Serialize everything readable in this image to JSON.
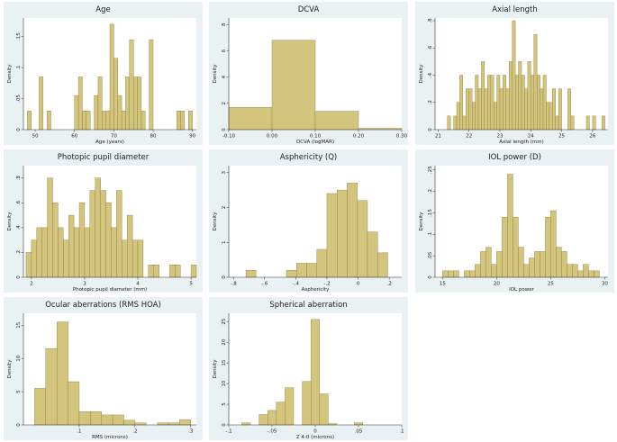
{
  "chart_data": [
    {
      "type": "histogram",
      "title": "Age",
      "xlabel": "Age (years)",
      "ylabel": "Density",
      "xlim": [
        47,
        91
      ],
      "ylim": [
        0,
        0.18
      ],
      "xticks": [
        50,
        60,
        70,
        80,
        90
      ],
      "xtick_labels": [
        "50",
        "60",
        "70",
        "80",
        "90"
      ],
      "yticks": [
        0,
        0.05,
        0.1,
        0.15
      ],
      "ytick_labels": [
        "0",
        ".05",
        ".1",
        ".15"
      ],
      "bin_width": 1,
      "bins": [
        [
          48,
          0.03
        ],
        [
          51,
          0.085
        ],
        [
          53,
          0.03
        ],
        [
          60,
          0.055
        ],
        [
          61,
          0.085
        ],
        [
          62,
          0.03
        ],
        [
          63,
          0.03
        ],
        [
          65,
          0.055
        ],
        [
          66,
          0.085
        ],
        [
          67,
          0.03
        ],
        [
          68,
          0.03
        ],
        [
          69,
          0.17
        ],
        [
          70,
          0.115
        ],
        [
          71,
          0.055
        ],
        [
          72,
          0.03
        ],
        [
          73,
          0.085
        ],
        [
          74,
          0.145
        ],
        [
          75,
          0.085
        ],
        [
          76,
          0.085
        ],
        [
          77,
          0.03
        ],
        [
          79,
          0.145
        ],
        [
          86,
          0.03
        ],
        [
          87,
          0.03
        ],
        [
          89,
          0.03
        ]
      ]
    },
    {
      "type": "histogram",
      "title": "DCVA",
      "xlabel": "DCVA (logMAR)",
      "ylabel": "Density",
      "xlim": [
        -0.1,
        0.3
      ],
      "ylim": [
        0,
        8.5
      ],
      "xticks": [
        -0.1,
        0,
        0.1,
        0.2,
        0.3
      ],
      "xtick_labels": [
        "-0.10",
        "0.00",
        "0.10",
        "0.20",
        "0.30"
      ],
      "yticks": [
        0,
        2,
        4,
        6,
        8
      ],
      "ytick_labels": [
        "0",
        "2",
        "4",
        "6",
        "8"
      ],
      "bin_width": 0.1,
      "bins": [
        [
          -0.1,
          1.7
        ],
        [
          0.0,
          6.8
        ],
        [
          0.1,
          1.4
        ],
        [
          0.2,
          0.1
        ]
      ]
    },
    {
      "type": "histogram",
      "title": "Axial length",
      "xlabel": "Axial length (mm)",
      "ylabel": "Density",
      "xlim": [
        20.9,
        26.5
      ],
      "ylim": [
        0,
        0.82
      ],
      "xticks": [
        21,
        22,
        23,
        24,
        25,
        26
      ],
      "xtick_labels": [
        "21",
        "22",
        "23",
        "24",
        "25",
        "26"
      ],
      "yticks": [
        0,
        0.2,
        0.4,
        0.6,
        0.8
      ],
      "ytick_labels": [
        "0",
        ".2",
        ".4",
        ".6",
        ".8"
      ],
      "bin_width": 0.1,
      "bins": [
        [
          21.3,
          0.1
        ],
        [
          21.5,
          0.1
        ],
        [
          21.6,
          0.2
        ],
        [
          21.7,
          0.4
        ],
        [
          21.8,
          0.1
        ],
        [
          21.9,
          0.3
        ],
        [
          22.0,
          0.3
        ],
        [
          22.1,
          0.2
        ],
        [
          22.2,
          0.4
        ],
        [
          22.3,
          0.3
        ],
        [
          22.4,
          0.5
        ],
        [
          22.5,
          0.3
        ],
        [
          22.6,
          0.4
        ],
        [
          22.7,
          0.4
        ],
        [
          22.8,
          0.2
        ],
        [
          22.9,
          0.4
        ],
        [
          23.0,
          0.3
        ],
        [
          23.1,
          0.4
        ],
        [
          23.2,
          0.3
        ],
        [
          23.3,
          0.5
        ],
        [
          23.4,
          0.8
        ],
        [
          23.5,
          0.4
        ],
        [
          23.6,
          0.5
        ],
        [
          23.7,
          0.4
        ],
        [
          23.8,
          0.3
        ],
        [
          23.9,
          0.5
        ],
        [
          24.0,
          0.4
        ],
        [
          24.1,
          0.7
        ],
        [
          24.2,
          0.4
        ],
        [
          24.3,
          0.3
        ],
        [
          24.4,
          0.4
        ],
        [
          24.5,
          0.2
        ],
        [
          24.6,
          0.2
        ],
        [
          24.7,
          0.3
        ],
        [
          24.8,
          0.1
        ],
        [
          24.9,
          0.3
        ],
        [
          25.2,
          0.3
        ],
        [
          25.3,
          0.1
        ],
        [
          25.8,
          0.1
        ],
        [
          26.0,
          0.1
        ],
        [
          26.3,
          0.1
        ]
      ]
    },
    {
      "type": "histogram",
      "title": "Photopic pupil diameter",
      "xlabel": "Photopic pupil diameter (mm)",
      "ylabel": "Density",
      "xlim": [
        1.85,
        5.1
      ],
      "ylim": [
        0,
        0.9
      ],
      "xticks": [
        2,
        3,
        4,
        5
      ],
      "xtick_labels": [
        "2",
        "3",
        "4",
        "5"
      ],
      "yticks": [
        0,
        0.2,
        0.4,
        0.6,
        0.8
      ],
      "ytick_labels": [
        "0",
        ".2",
        ".4",
        ".6",
        ".8"
      ],
      "bin_width": 0.1,
      "bins": [
        [
          1.9,
          0.2
        ],
        [
          2.0,
          0.3
        ],
        [
          2.1,
          0.4
        ],
        [
          2.2,
          0.4
        ],
        [
          2.3,
          0.8
        ],
        [
          2.4,
          0.6
        ],
        [
          2.5,
          0.4
        ],
        [
          2.6,
          0.3
        ],
        [
          2.7,
          0.5
        ],
        [
          2.8,
          0.4
        ],
        [
          2.9,
          0.6
        ],
        [
          3.0,
          0.4
        ],
        [
          3.1,
          0.7
        ],
        [
          3.2,
          0.8
        ],
        [
          3.3,
          0.7
        ],
        [
          3.4,
          0.6
        ],
        [
          3.5,
          0.4
        ],
        [
          3.6,
          0.7
        ],
        [
          3.7,
          0.3
        ],
        [
          3.8,
          0.5
        ],
        [
          3.9,
          0.3
        ],
        [
          4.0,
          0.3
        ],
        [
          4.2,
          0.1
        ],
        [
          4.3,
          0.1
        ],
        [
          4.6,
          0.1
        ],
        [
          4.7,
          0.1
        ],
        [
          5.0,
          0.1
        ]
      ]
    },
    {
      "type": "histogram",
      "title": "Asphericity (Q)",
      "xlabel": "Asphericity",
      "ylabel": "Density",
      "xlim": [
        -0.83,
        0.28
      ],
      "ylim": [
        0,
        3.2
      ],
      "xticks": [
        -0.8,
        -0.6,
        -0.4,
        -0.2,
        0,
        0.2
      ],
      "xtick_labels": [
        "-.8",
        "-.6",
        "-.4",
        "-.2",
        "0",
        ".2"
      ],
      "yticks": [
        0,
        1,
        2,
        3
      ],
      "ytick_labels": [
        "0",
        "1",
        "2",
        "3"
      ],
      "bin_width": 0.065,
      "bins": [
        [
          -0.72,
          0.2
        ],
        [
          -0.46,
          0.2
        ],
        [
          -0.395,
          0.4
        ],
        [
          -0.33,
          0.4
        ],
        [
          -0.265,
          0.8
        ],
        [
          -0.2,
          2.4
        ],
        [
          -0.135,
          2.5
        ],
        [
          -0.07,
          2.7
        ],
        [
          -0.005,
          2.2
        ],
        [
          0.06,
          1.3
        ],
        [
          0.125,
          0.7
        ]
      ]
    },
    {
      "type": "histogram",
      "title": "IOL power (D)",
      "xlabel": "IOL power",
      "ylabel": "Density",
      "xlim": [
        14.3,
        30.3
      ],
      "ylim": [
        0,
        0.26
      ],
      "xticks": [
        15,
        20,
        25,
        30
      ],
      "xtick_labels": [
        "15",
        "20",
        "25",
        "30"
      ],
      "yticks": [
        0,
        0.05,
        0.1,
        0.15,
        0.2,
        0.25
      ],
      "ytick_labels": [
        "0",
        ".05",
        ".1",
        ".15",
        ".2",
        ".25"
      ],
      "bin_width": 0.5,
      "bins": [
        [
          15.0,
          0.015
        ],
        [
          15.5,
          0.015
        ],
        [
          16.0,
          0.015
        ],
        [
          17.0,
          0.015
        ],
        [
          17.5,
          0.015
        ],
        [
          18.0,
          0.03
        ],
        [
          18.5,
          0.06
        ],
        [
          19.0,
          0.07
        ],
        [
          19.5,
          0.03
        ],
        [
          20.0,
          0.06
        ],
        [
          20.5,
          0.14
        ],
        [
          21.0,
          0.24
        ],
        [
          21.5,
          0.14
        ],
        [
          22.0,
          0.07
        ],
        [
          22.5,
          0.03
        ],
        [
          23.0,
          0.045
        ],
        [
          23.5,
          0.06
        ],
        [
          24.0,
          0.06
        ],
        [
          24.5,
          0.14
        ],
        [
          25.0,
          0.155
        ],
        [
          25.5,
          0.07
        ],
        [
          26.0,
          0.06
        ],
        [
          26.5,
          0.03
        ],
        [
          27.0,
          0.03
        ],
        [
          27.5,
          0.015
        ],
        [
          28.0,
          0.03
        ],
        [
          28.5,
          0.015
        ],
        [
          29.0,
          0.015
        ]
      ]
    },
    {
      "type": "histogram",
      "title": "Ocular aberrations (RMS HOA)",
      "xlabel": "RMS (microns)",
      "ylabel": "Density",
      "xlim": [
        0,
        0.31
      ],
      "ylim": [
        0,
        16.8
      ],
      "xticks": [
        0.1,
        0.2,
        0.3
      ],
      "xtick_labels": [
        ".1",
        ".2",
        ".3"
      ],
      "yticks": [
        0,
        5,
        10,
        15
      ],
      "ytick_labels": [
        "0",
        "5",
        "10",
        "15"
      ],
      "bin_width": 0.02,
      "bins": [
        [
          0.02,
          5.5
        ],
        [
          0.04,
          11.5
        ],
        [
          0.06,
          15.5
        ],
        [
          0.08,
          6.5
        ],
        [
          0.1,
          2.0
        ],
        [
          0.12,
          2.0
        ],
        [
          0.14,
          1.5
        ],
        [
          0.16,
          1.5
        ],
        [
          0.18,
          0.7
        ],
        [
          0.2,
          0.3
        ],
        [
          0.24,
          0.3
        ],
        [
          0.26,
          0.3
        ],
        [
          0.28,
          0.8
        ]
      ]
    },
    {
      "type": "histogram",
      "title": "Spherical aberration",
      "xlabel": "Z 4-0 (microns)",
      "ylabel": "Density",
      "xlim": [
        -0.1,
        0.1
      ],
      "ylim": [
        0,
        27
      ],
      "xticks": [
        -0.1,
        -0.05,
        0,
        0.05,
        0.1
      ],
      "xtick_labels": [
        "-.1",
        "-.05",
        "0",
        ".05",
        ".1"
      ],
      "yticks": [
        0,
        5,
        10,
        15,
        20,
        25
      ],
      "ytick_labels": [
        "0",
        "5",
        "10",
        "15",
        "20",
        "25"
      ],
      "bin_width": 0.01,
      "bins": [
        [
          -0.085,
          0.5
        ],
        [
          -0.065,
          2.5
        ],
        [
          -0.055,
          3.5
        ],
        [
          -0.045,
          5.5
        ],
        [
          -0.035,
          9.0
        ],
        [
          -0.015,
          10.5
        ],
        [
          -0.005,
          25.5
        ],
        [
          0.005,
          7.5
        ],
        [
          0.015,
          0.3
        ],
        [
          0.045,
          0.5
        ]
      ]
    }
  ]
}
